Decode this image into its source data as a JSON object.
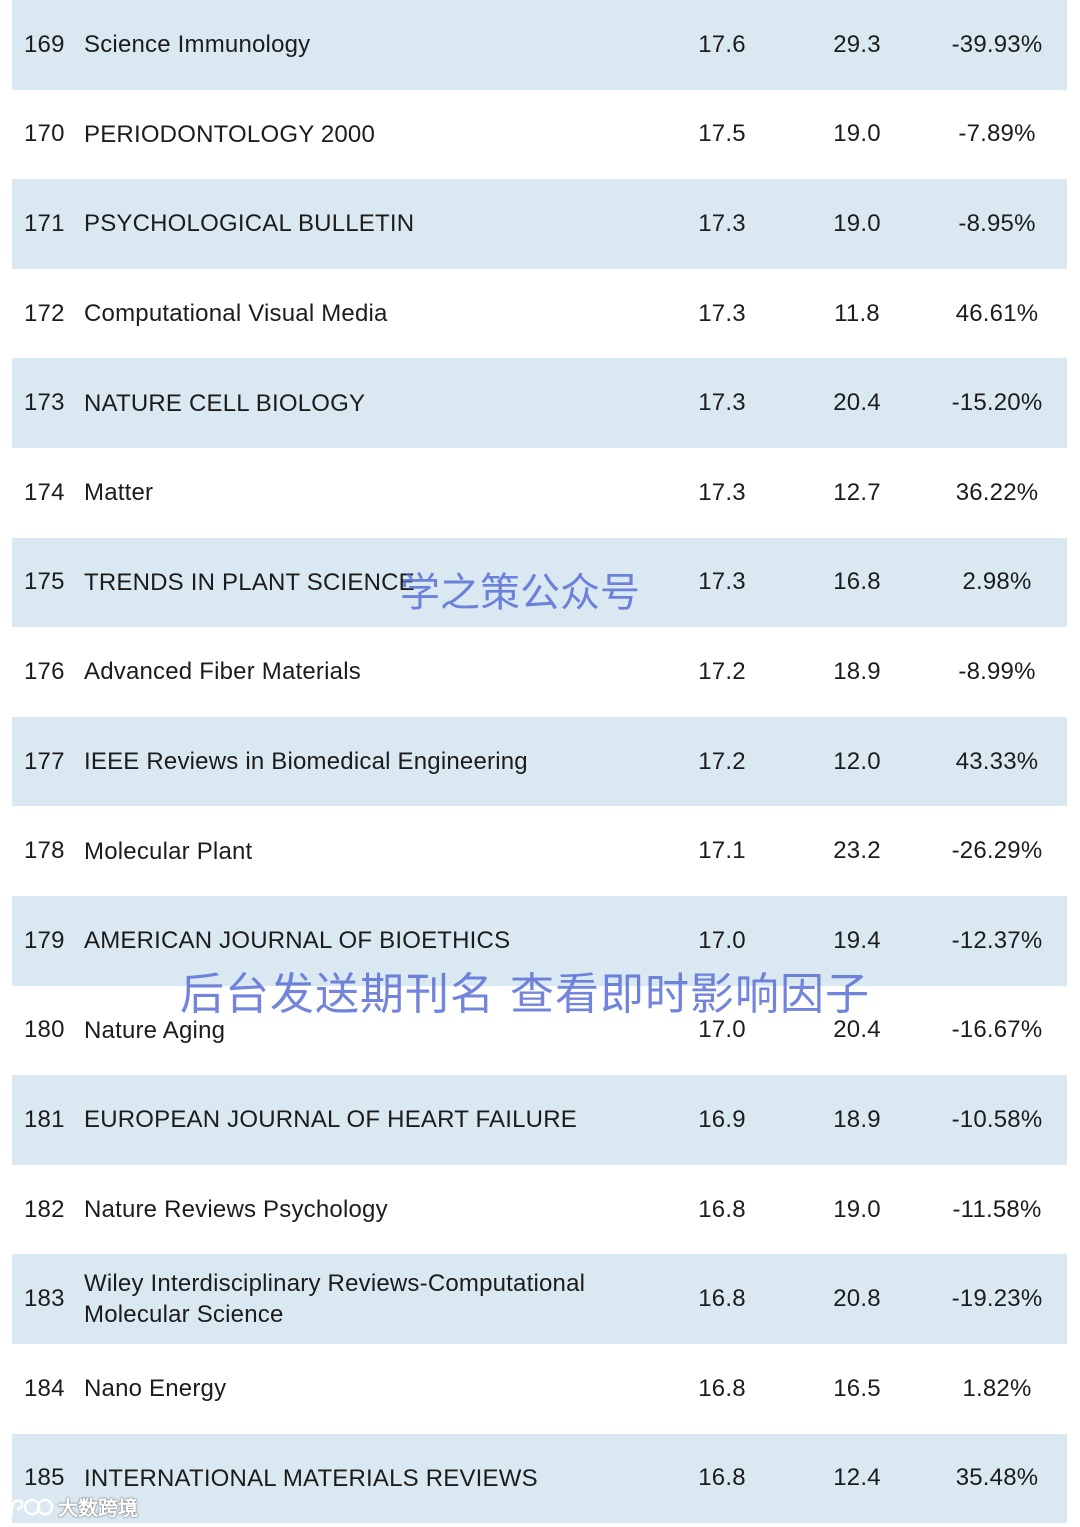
{
  "rows": [
    {
      "rank": "169",
      "journal": "Science Immunology",
      "v1": "17.6",
      "v2": "29.3",
      "v3": "-39.93%"
    },
    {
      "rank": "170",
      "journal": "PERIODONTOLOGY 2000",
      "v1": "17.5",
      "v2": "19.0",
      "v3": "-7.89%"
    },
    {
      "rank": "171",
      "journal": "PSYCHOLOGICAL BULLETIN",
      "v1": "17.3",
      "v2": "19.0",
      "v3": "-8.95%"
    },
    {
      "rank": "172",
      "journal": "Computational Visual Media",
      "v1": "17.3",
      "v2": "11.8",
      "v3": "46.61%"
    },
    {
      "rank": "173",
      "journal": "NATURE CELL BIOLOGY",
      "v1": "17.3",
      "v2": "20.4",
      "v3": "-15.20%"
    },
    {
      "rank": "174",
      "journal": "Matter",
      "v1": "17.3",
      "v2": "12.7",
      "v3": "36.22%"
    },
    {
      "rank": "175",
      "journal": "TRENDS IN PLANT SCIENCE",
      "v1": "17.3",
      "v2": "16.8",
      "v3": "2.98%"
    },
    {
      "rank": "176",
      "journal": "Advanced Fiber Materials",
      "v1": "17.2",
      "v2": "18.9",
      "v3": "-8.99%"
    },
    {
      "rank": "177",
      "journal": "IEEE Reviews in Biomedical Engineering",
      "v1": "17.2",
      "v2": "12.0",
      "v3": "43.33%"
    },
    {
      "rank": "178",
      "journal": "Molecular Plant",
      "v1": "17.1",
      "v2": "23.2",
      "v3": "-26.29%"
    },
    {
      "rank": "179",
      "journal": "AMERICAN JOURNAL OF BIOETHICS",
      "v1": "17.0",
      "v2": "19.4",
      "v3": "-12.37%"
    },
    {
      "rank": "180",
      "journal": "Nature Aging",
      "v1": "17.0",
      "v2": "20.4",
      "v3": "-16.67%"
    },
    {
      "rank": "181",
      "journal": "EUROPEAN JOURNAL OF HEART FAILURE",
      "v1": "16.9",
      "v2": "18.9",
      "v3": "-10.58%"
    },
    {
      "rank": "182",
      "journal": "Nature Reviews Psychology",
      "v1": "16.8",
      "v2": "19.0",
      "v3": "-11.58%"
    },
    {
      "rank": "183",
      "journal": "Wiley Interdisciplinary Reviews-Computational Molecular Science",
      "v1": "16.8",
      "v2": "20.8",
      "v3": "-19.23%"
    },
    {
      "rank": "184",
      "journal": "Nano Energy",
      "v1": "16.8",
      "v2": "16.5",
      "v3": "1.82%"
    },
    {
      "rank": "185",
      "journal": "INTERNATIONAL MATERIALS REVIEWS",
      "v1": "16.8",
      "v2": "12.4",
      "v3": "35.48%"
    }
  ],
  "watermarks": {
    "top": "学之策公众号",
    "middle": "后台发送期刊名 查看即时影响因子"
  },
  "logo": {
    "text": "大数跨境"
  },
  "colors": {
    "row_shaded": "#d9e8f1",
    "row_plain": "#ffffff",
    "watermark": "#5b6fd6",
    "text": "#1c1c1c"
  }
}
